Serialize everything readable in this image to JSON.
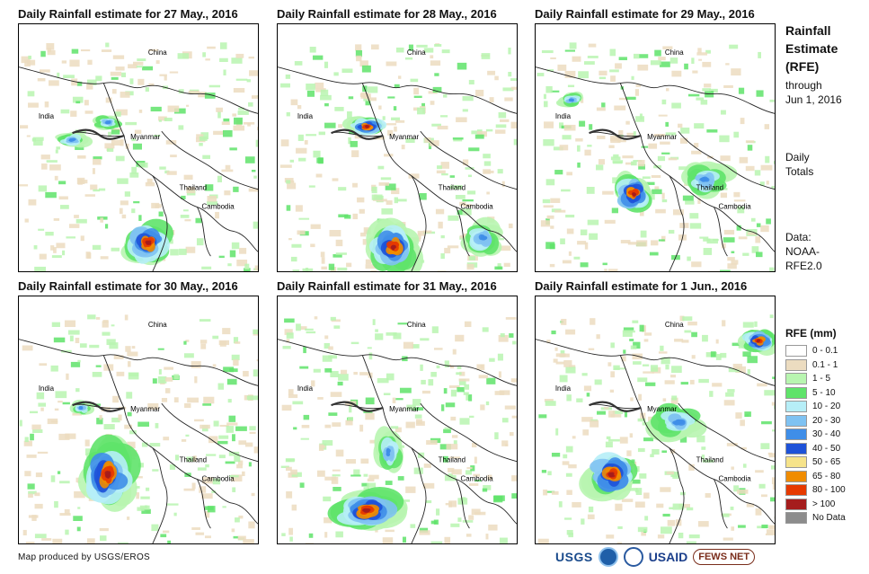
{
  "panels": [
    {
      "title": "Daily Rainfall estimate for 27 May., 2016"
    },
    {
      "title": "Daily Rainfall estimate for 28 May., 2016"
    },
    {
      "title": "Daily Rainfall estimate for 29 May., 2016"
    },
    {
      "title": "Daily Rainfall estimate for 30 May., 2016"
    },
    {
      "title": "Daily Rainfall estimate for 31 May., 2016"
    },
    {
      "title": "Daily Rainfall estimate for 1 Jun., 2016"
    }
  ],
  "map_labels": {
    "china": "China",
    "india": "India",
    "myanmar": "Myanmar",
    "thailand": "Thailand",
    "cambodia": "Cambodia"
  },
  "sidebar": {
    "title_line1": "Rainfall",
    "title_line2": "Estimate",
    "title_line3": "(RFE)",
    "through": "through",
    "date": "Jun 1, 2016",
    "daily": "Daily",
    "totals": "Totals",
    "data_label": "Data:",
    "source_line1": "NOAA-",
    "source_line2": "RFE2.0"
  },
  "legend": {
    "title": "RFE (mm)",
    "items": [
      {
        "label": "0 - 0.1",
        "color": "#ffffff"
      },
      {
        "label": "0.1 - 1",
        "color": "#ecdcc0"
      },
      {
        "label": "1 - 5",
        "color": "#b8f5b0"
      },
      {
        "label": "5 - 10",
        "color": "#5fe36a"
      },
      {
        "label": "10 - 20",
        "color": "#b6eef7"
      },
      {
        "label": "20 - 30",
        "color": "#7fc2f2"
      },
      {
        "label": "30 - 40",
        "color": "#3f8ee8"
      },
      {
        "label": "40 - 50",
        "color": "#1e52d8"
      },
      {
        "label": "50 - 65",
        "color": "#f6e38a"
      },
      {
        "label": "65 - 80",
        "color": "#f08c00"
      },
      {
        "label": "80 - 100",
        "color": "#e63a00"
      },
      {
        "label": "> 100",
        "color": "#a51d1d"
      },
      {
        "label": "No Data",
        "color": "#8c8c8c"
      }
    ]
  },
  "credit": "Map produced by USGS/EROS",
  "logos": {
    "usgs": "USGS",
    "usaid": "USAID",
    "fews": "FEWS NET"
  }
}
